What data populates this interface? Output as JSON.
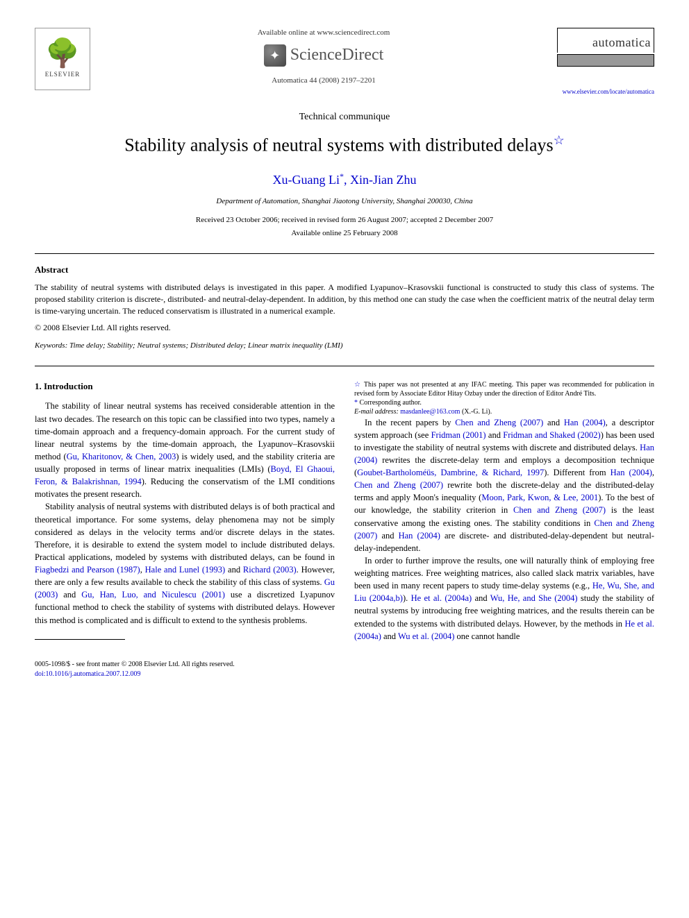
{
  "header": {
    "available_online": "Available online at www.sciencedirect.com",
    "sciencedirect": "ScienceDirect",
    "journal_ref": "Automatica 44 (2008) 2197–2201",
    "elsevier_label": "ELSEVIER",
    "journal_name": "automatica",
    "journal_url": "www.elsevier.com/locate/automatica"
  },
  "article": {
    "type": "Technical communique",
    "title": "Stability analysis of neutral systems with distributed delays",
    "authors": "Xu-Guang Li",
    "authors2": ", Xin-Jian Zhu",
    "affiliation": "Department of Automation, Shanghai Jiaotong University, Shanghai 200030, China",
    "received": "Received 23 October 2006; received in revised form 26 August 2007; accepted 2 December 2007",
    "online_date": "Available online 25 February 2008"
  },
  "abstract": {
    "heading": "Abstract",
    "text": "The stability of neutral systems with distributed delays is investigated in this paper. A modified Lyapunov–Krasovskii functional is constructed to study this class of systems. The proposed stability criterion is discrete-, distributed- and neutral-delay-dependent. In addition, by this method one can study the case when the coefficient matrix of the neutral delay term is time-varying uncertain. The reduced conservatism is illustrated in a numerical example.",
    "copyright": "© 2008 Elsevier Ltd. All rights reserved.",
    "keywords_label": "Keywords:",
    "keywords": " Time delay; Stability; Neutral systems; Distributed delay; Linear matrix inequality (LMI)"
  },
  "body": {
    "section1_heading": "1. Introduction",
    "p1a": "The stability of linear neutral systems has received considerable attention in the last two decades. The research on this topic can be classified into two types, namely a time-domain approach and a frequency-domain approach. For the current study of linear neutral systems by the time-domain approach, the Lyapunov–Krasovskii method (",
    "p1_ref1": "Gu, Kharitonov, & Chen, 2003",
    "p1b": ") is widely used, and the stability criteria are usually proposed in terms of linear matrix inequalities (LMIs) (",
    "p1_ref2": "Boyd, El Ghaoui, Feron, & Balakrishnan, 1994",
    "p1c": "). Reducing the conservatism of the LMI conditions motivates the present research.",
    "p2a": "Stability analysis of neutral systems with distributed delays is of both practical and theoretical importance. For some systems, delay phenomena may not be simply considered as delays in the velocity terms and/or discrete delays in the states. Therefore, it is desirable to extend the system model to include distributed delays. Practical applications, modeled by systems with distributed delays, can be found in ",
    "p2_ref1": "Fiagbedzi and Pearson (1987)",
    "p2b": ", ",
    "p2_ref2": "Hale and Lunel (1993)",
    "p2c": " and ",
    "p2_ref3": "Richard (2003)",
    "p2d": ". However, there are only a few results available to check the stability of this class of systems. ",
    "p2_ref4": "Gu (2003)",
    "p2e": " and ",
    "p2_ref5": "Gu, Han, Luo, and Niculescu (2001)",
    "p2f": " use a discretized Lyapunov functional method to check the stability of systems with distributed delays. However this method is complicated and is difficult to extend to the synthesis problems.",
    "p3a": "In the recent papers by ",
    "p3_ref1": "Chen and Zheng (2007)",
    "p3b": " and ",
    "p3_ref2": "Han (2004)",
    "p3c": ", a descriptor system approach (see ",
    "p3_ref3": "Fridman (2001)",
    "p3d": " and ",
    "p3_ref4": "Fridman and Shaked (2002)",
    "p3e": ") has been used to investigate the stability of neutral systems with discrete and distributed delays. ",
    "p3_ref5": "Han (2004)",
    "p3f": " rewrites the discrete-delay term and employs a decomposition technique (",
    "p3_ref6": "Goubet-Bartholoméüs, Dambrine, & Richard, 1997",
    "p3g": "). Different from ",
    "p3_ref7": "Han (2004)",
    "p3h": ", ",
    "p3_ref8": "Chen and Zheng (2007)",
    "p3i": " rewrite both the discrete-delay and the distributed-delay terms and apply Moon's inequality (",
    "p3_ref9": "Moon, Park, Kwon, & Lee, 2001",
    "p3j": "). To the best of our knowledge, the stability criterion in ",
    "p3_ref10": "Chen and Zheng (2007)",
    "p3k": " is the least conservative among the existing ones. The stability conditions in ",
    "p3_ref11": "Chen and Zheng (2007)",
    "p3l": " and ",
    "p3_ref12": "Han (2004)",
    "p3m": " are discrete- and distributed-delay-dependent but neutral-delay-independent.",
    "p4a": "In order to further improve the results, one will naturally think of employing free weighting matrices. Free weighting matrices, also called slack matrix variables, have been used in many recent papers to study time-delay systems (e.g., ",
    "p4_ref1": "He, Wu, She, and Liu (2004a,b)",
    "p4b": "). ",
    "p4_ref2": "He et al. (2004a)",
    "p4c": " and ",
    "p4_ref3": "Wu, He, and She (2004)",
    "p4d": " study the stability of neutral systems by introducing free weighting matrices, and the results therein can be extended to the systems with distributed delays. However, by the methods in ",
    "p4_ref4": "He et al. (2004a)",
    "p4e": " and ",
    "p4_ref5": "Wu et al. (2004)",
    "p4f": " one cannot handle"
  },
  "footnotes": {
    "fn1": "This paper was not presented at any IFAC meeting. This paper was recommended for publication in revised form by Associate Editor Hitay Ozbay under the direction of Editor André Tits.",
    "fn2_label": "Corresponding author.",
    "fn3_label": "E-mail address:",
    "fn3_email": "masdanlee@163.com",
    "fn3_tail": " (X.-G. Li)."
  },
  "footer": {
    "issn": "0005-1098/$ - see front matter © 2008 Elsevier Ltd. All rights reserved.",
    "doi": "doi:10.1016/j.automatica.2007.12.009"
  },
  "style": {
    "link_color": "#0000cc",
    "text_color": "#000000",
    "background": "#ffffff",
    "title_fontsize": 26,
    "author_fontsize": 18,
    "body_fontsize": 12.5
  }
}
